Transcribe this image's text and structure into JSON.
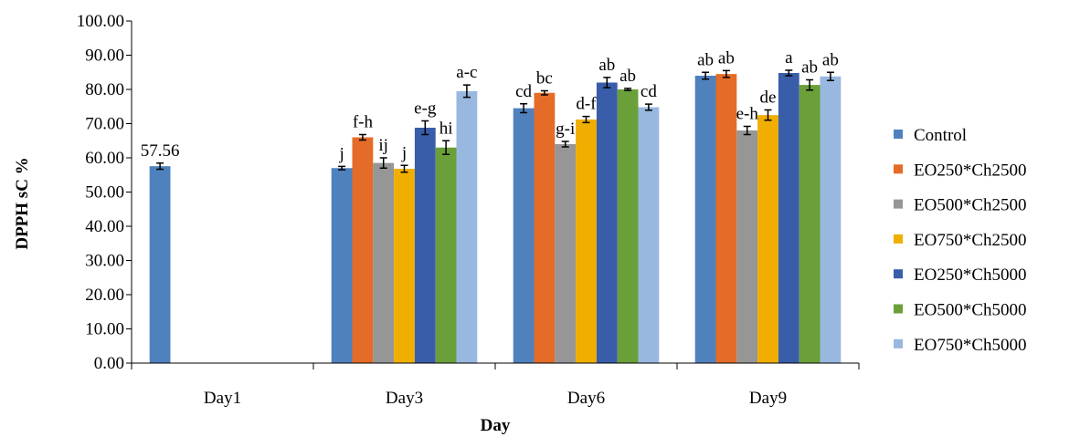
{
  "chart_data": {
    "type": "bar",
    "xlabel": "Day",
    "ylabel": "DPPH sC %",
    "ylim": [
      0,
      100
    ],
    "yticks": [
      "0.00",
      "10.00",
      "20.00",
      "30.00",
      "40.00",
      "50.00",
      "60.00",
      "70.00",
      "80.00",
      "90.00",
      "100.00"
    ],
    "categories": [
      "Day1",
      "Day3",
      "Day6",
      "Day9"
    ],
    "legend_position": "right",
    "grid": false,
    "series": [
      {
        "name": "Control",
        "color": "#4F81BD",
        "values": [
          57.56,
          57.0,
          74.5,
          84.0
        ],
        "errors": [
          0.9,
          0.5,
          1.3,
          1.0
        ],
        "labels": [
          "57.56",
          "j",
          "cd",
          "ab"
        ]
      },
      {
        "name": "EO250*Ch2500",
        "color": "#E46C28",
        "values": [
          null,
          66.0,
          79.0,
          84.5
        ],
        "errors": [
          null,
          0.8,
          0.6,
          1.0
        ],
        "labels": [
          "",
          "f-h",
          "bc",
          "ab"
        ]
      },
      {
        "name": "EO500*Ch2500",
        "color": "#969696",
        "values": [
          null,
          58.5,
          64.0,
          68.0
        ],
        "errors": [
          null,
          1.5,
          0.8,
          1.2
        ],
        "labels": [
          "",
          "ij",
          "g-i",
          "e-h"
        ]
      },
      {
        "name": "EO750*Ch2500",
        "color": "#F0AF00",
        "values": [
          null,
          56.8,
          71.2,
          72.5
        ],
        "errors": [
          null,
          1.0,
          0.9,
          1.5
        ],
        "labels": [
          "",
          "j",
          "d-f",
          "de"
        ]
      },
      {
        "name": "EO250*Ch5000",
        "color": "#3A5DAA",
        "values": [
          null,
          68.8,
          82.0,
          84.8
        ],
        "errors": [
          null,
          2.0,
          1.5,
          0.8
        ],
        "labels": [
          "",
          "e-g",
          "ab",
          "a"
        ]
      },
      {
        "name": "EO500*Ch5000",
        "color": "#6A9F3A",
        "values": [
          null,
          63.0,
          80.0,
          81.3
        ],
        "errors": [
          null,
          2.0,
          0.3,
          1.5
        ],
        "labels": [
          "",
          "hi",
          "ab",
          "ab"
        ]
      },
      {
        "name": "EO750*Ch5000",
        "color": "#99B8E0",
        "values": [
          null,
          79.5,
          74.8,
          83.8
        ],
        "errors": [
          null,
          1.8,
          0.9,
          1.2
        ],
        "labels": [
          "",
          "a-c",
          "cd",
          "ab"
        ]
      }
    ]
  }
}
